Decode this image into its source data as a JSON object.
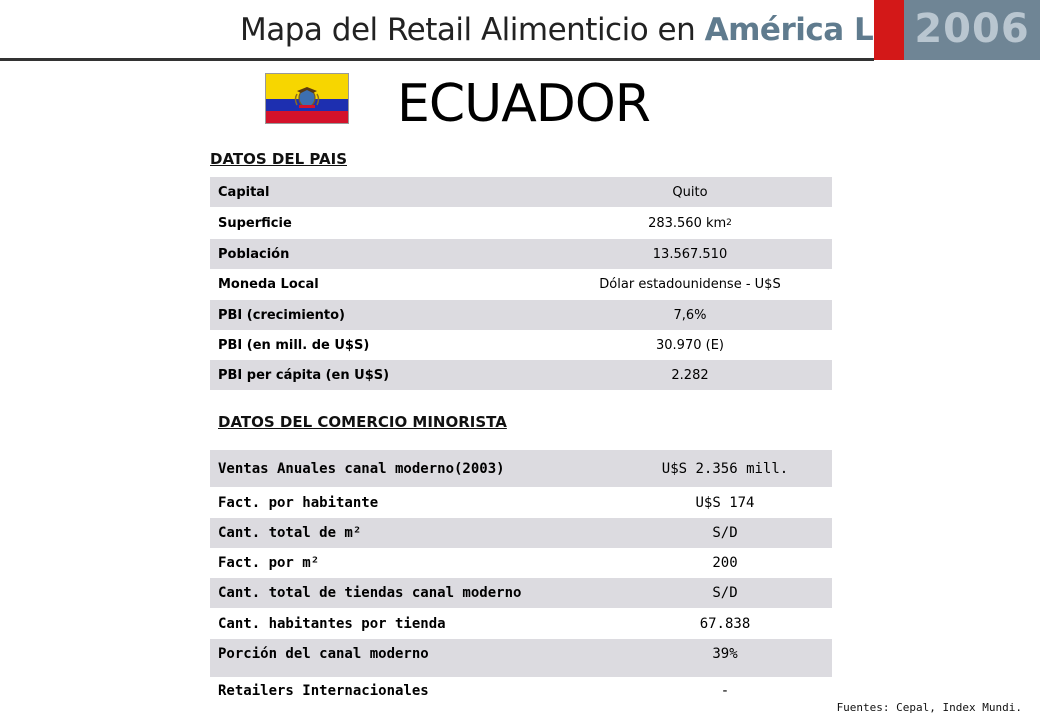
{
  "header": {
    "title_main": "Mapa del Retail Alimenticio en",
    "title_accent": "América Latina",
    "year": "2006"
  },
  "country": "ECUADOR",
  "datos_pais": {
    "section_title": "DATOS DEL PAIS",
    "rows": [
      {
        "label": "Capital",
        "value": "Quito"
      },
      {
        "label": "Superficie",
        "value": "283.560 km",
        "sup": "2"
      },
      {
        "label": "Población",
        "value": "13.567.510"
      },
      {
        "label": "Moneda Local",
        "value": "Dólar estadounidense - U$S"
      },
      {
        "label": "PBI (crecimiento)",
        "value": "7,6%"
      },
      {
        "label": "PBI (en mill. de U$S)",
        "value": "30.970 (E)"
      },
      {
        "label": "PBI per cápita (en U$S)",
        "value": "2.282"
      }
    ]
  },
  "datos_comercio": {
    "section_title": "DATOS DEL COMERCIO MINORISTA",
    "rows": [
      {
        "label": "Ventas Anuales canal moderno(2003)",
        "value": "U$S 2.356 mill."
      },
      {
        "label": "Fact. por habitante",
        "value": "U$S 174"
      },
      {
        "label": "Cant. total de m²",
        "value": "S/D"
      },
      {
        "label": "Fact. por m²",
        "value": "200"
      },
      {
        "label": "Cant. total de tiendas canal moderno",
        "value": "S/D"
      },
      {
        "label": "Cant. habitantes por tienda",
        "value": "67.838"
      },
      {
        "label": "Porción del canal moderno",
        "value": "39%"
      },
      {
        "label": "Retailers Internacionales",
        "value": "-"
      }
    ]
  },
  "sources": "Fuentes: Cepal, Index Mundi.",
  "colors": {
    "accent": "#5f7b8e",
    "year_block": "#6f8595",
    "red_block": "#d31818",
    "row_shade": "#dcdbe0"
  }
}
